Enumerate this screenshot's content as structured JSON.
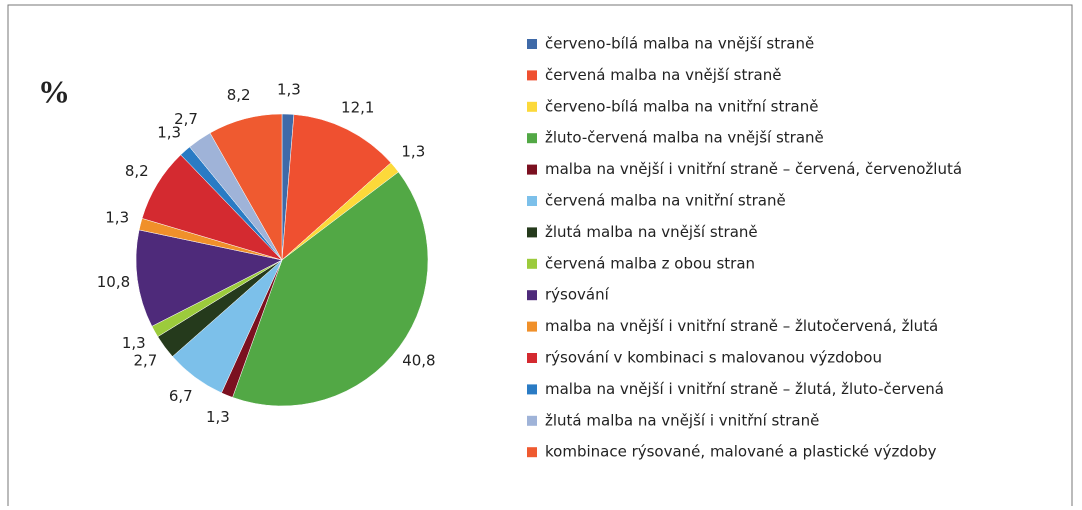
{
  "chart_data": {
    "type": "pie",
    "title": "%",
    "categories": [
      "červeno-bílá malba na vnější straně",
      "červená malba na vnější straně",
      "červeno-bílá malba na vnitřní straně",
      "žluto-červená malba na vnější straně",
      "malba na vnější i vnitřní straně – červená, červenožlutá",
      "červená malba na vnitřní straně",
      "žlutá malba na vnější straně",
      "červená malba z obou stran",
      "rýsování",
      "malba na vnější i vnitřní straně – žlutočervená, žlutá",
      "rýsování v kombinaci s malovanou výzdobou",
      "malba na vnější i vnitřní straně – žlutá, žluto-červená",
      "žlutá malba na vnější i vnitřní straně",
      "kombinace rýsované, malované a plastické výzdoby"
    ],
    "values": [
      1.3,
      12.1,
      1.3,
      40.8,
      1.3,
      6.7,
      2.7,
      1.3,
      10.8,
      1.3,
      8.2,
      1.3,
      2.7,
      8.2
    ],
    "value_labels": [
      "1,3",
      "12,1",
      "1,3",
      "40,8",
      "1,3",
      "6,7",
      "2,7",
      "1,3",
      "10,8",
      "1,3",
      "8,2",
      "1,3",
      "2,7",
      "8,2"
    ],
    "colors": [
      "#3f6aa8",
      "#ef5030",
      "#fcd93a",
      "#52a845",
      "#7b1020",
      "#7cc0ea",
      "#253a1c",
      "#9ccb3c",
      "#4e2a7a",
      "#f0902a",
      "#d42a30",
      "#2a7bc4",
      "#9fb3d8",
      "#ef5a30"
    ]
  }
}
